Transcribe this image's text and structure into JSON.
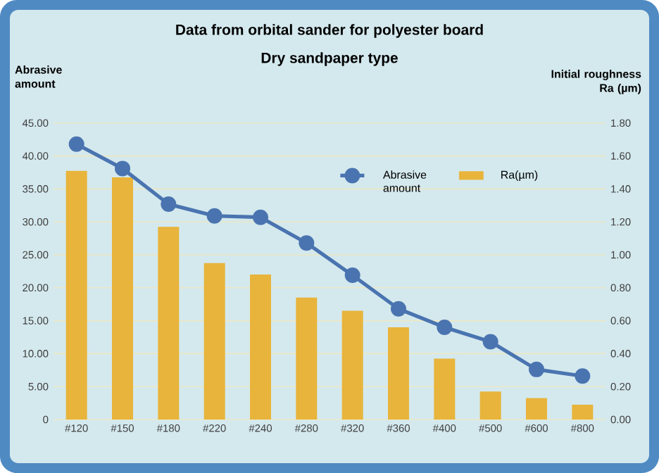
{
  "chart_data": {
    "type": "bar",
    "title": "Data from orbital sander for polyester board",
    "subtitle": "Dry sandpaper type",
    "ylabel": "Abrasive amount",
    "y2label": "Initial roughness Ra (µm)",
    "categories": [
      "#120",
      "#150",
      "#180",
      "#220",
      "#240",
      "#280",
      "#320",
      "#360",
      "#400",
      "#500",
      "#600",
      "#800"
    ],
    "series": [
      {
        "name": "Abrasive amount",
        "type": "line",
        "color": "#4a74b0",
        "marker": "circle",
        "values": [
          41.8,
          38.1,
          32.7,
          30.9,
          30.7,
          26.8,
          21.9,
          16.8,
          14.0,
          11.8,
          7.6,
          6.6
        ]
      },
      {
        "name": "Ra(µm)",
        "axis": "y2",
        "color": "#e8b43c",
        "values": [
          1.51,
          1.47,
          1.17,
          0.95,
          0.88,
          0.74,
          0.66,
          0.56,
          0.37,
          0.17,
          0.13,
          0.09
        ]
      }
    ],
    "ylim": [
      0,
      45
    ],
    "yticks": [
      {
        "value": 0,
        "label": "0"
      },
      {
        "value": 5,
        "label": "5.00"
      },
      {
        "value": 10,
        "label": "10.00"
      },
      {
        "value": 15,
        "label": "15.00"
      },
      {
        "value": 20,
        "label": "20.00"
      },
      {
        "value": 25,
        "label": "25.00"
      },
      {
        "value": 30,
        "label": "30.00"
      },
      {
        "value": 35,
        "label": "35.00"
      },
      {
        "value": 40,
        "label": "40.00"
      },
      {
        "value": 45,
        "label": "45.00"
      }
    ],
    "y2lim": [
      0,
      1.8
    ],
    "y2ticks": [
      {
        "value": 0,
        "label": "0.00"
      },
      {
        "value": 0.2,
        "label": "0.20"
      },
      {
        "value": 0.4,
        "label": "0.40"
      },
      {
        "value": 0.6,
        "label": "0.60"
      },
      {
        "value": 0.8,
        "label": "0.80"
      },
      {
        "value": 1.0,
        "label": "1.00"
      },
      {
        "value": 1.2,
        "label": "1.20"
      },
      {
        "value": 1.4,
        "label": "1.40"
      },
      {
        "value": 1.6,
        "label": "1.60"
      },
      {
        "value": 1.8,
        "label": "1.80"
      }
    ],
    "grid": "y",
    "legend": "top right"
  }
}
